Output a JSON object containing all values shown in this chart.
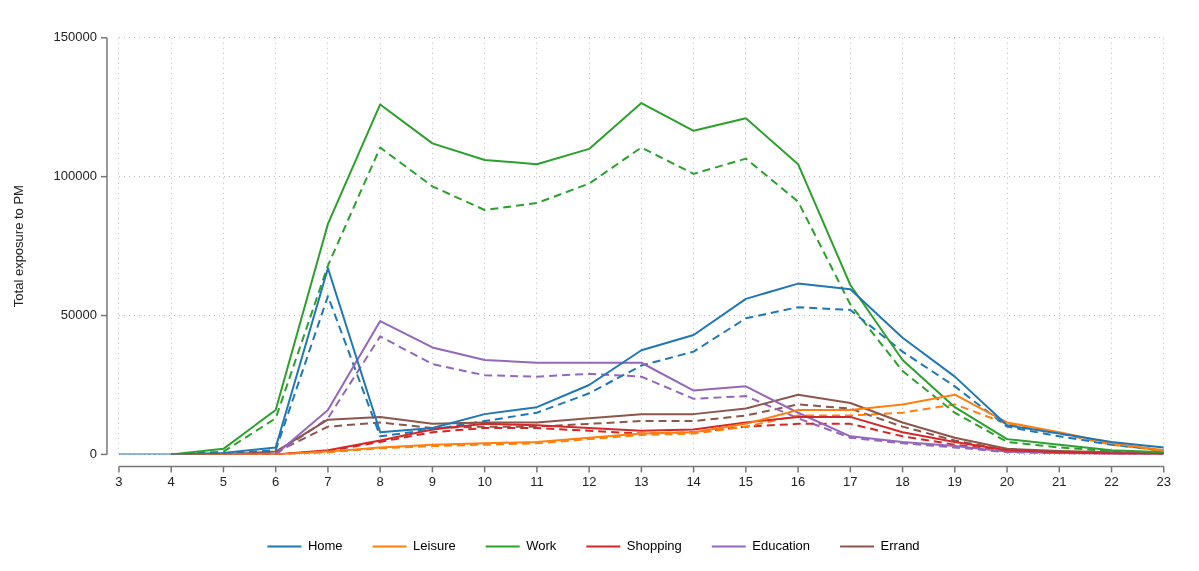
{
  "chart_data": {
    "type": "line",
    "ylabel": "Total exposure to PM",
    "x": [
      3,
      4,
      5,
      6,
      7,
      8,
      9,
      10,
      11,
      12,
      13,
      14,
      15,
      16,
      17,
      18,
      19,
      20,
      21,
      22,
      23
    ],
    "xlim": [
      3,
      23
    ],
    "xticks": [
      3,
      4,
      5,
      6,
      7,
      8,
      9,
      10,
      11,
      12,
      13,
      14,
      15,
      16,
      17,
      18,
      19,
      20,
      21,
      22,
      23
    ],
    "ylim": [
      0,
      150000
    ],
    "yticks": [
      0,
      50000,
      100000,
      150000
    ],
    "grid": true,
    "legend": "bottom",
    "marker": "none",
    "series": [
      {
        "name": "Home",
        "color": "#1f77b4",
        "line_style": "solid",
        "values": [
          0,
          0,
          500,
          2500,
          67000,
          8000,
          9500,
          14500,
          17000,
          25000,
          37500,
          43000,
          56000,
          61500,
          59500,
          42000,
          28000,
          10500,
          7500,
          4500,
          2500
        ]
      },
      {
        "name": "Leisure",
        "color": "#ff7f0e",
        "line_style": "solid",
        "values": [
          null,
          0,
          0,
          0,
          1000,
          2500,
          3500,
          4000,
          4500,
          6000,
          7500,
          8000,
          11000,
          16000,
          16000,
          18000,
          21500,
          11500,
          8000,
          4000,
          1500
        ]
      },
      {
        "name": "Work",
        "color": "#2ca02c",
        "line_style": "solid",
        "values": [
          null,
          0,
          2000,
          16000,
          83000,
          126000,
          112000,
          106000,
          104500,
          110000,
          126500,
          116500,
          121000,
          104500,
          61000,
          34000,
          17000,
          5500,
          3500,
          1500,
          800
        ]
      },
      {
        "name": "Shopping",
        "color": "#d62728",
        "line_style": "solid",
        "values": [
          null,
          0,
          0,
          0,
          1500,
          5000,
          9000,
          11000,
          10500,
          9500,
          8500,
          9000,
          11500,
          13500,
          13500,
          8000,
          4500,
          1500,
          800,
          300,
          200
        ]
      },
      {
        "name": "Education",
        "color": "#9467bd",
        "line_style": "solid",
        "values": [
          null,
          null,
          0,
          0,
          16000,
          48000,
          38500,
          34000,
          33000,
          33000,
          33000,
          23000,
          24500,
          15000,
          6500,
          4500,
          3000,
          1000,
          500,
          300,
          200
        ]
      },
      {
        "name": "Errand",
        "color": "#8c564b",
        "line_style": "solid",
        "values": [
          null,
          0,
          0,
          1000,
          12500,
          13500,
          11000,
          11500,
          11500,
          13000,
          14500,
          14500,
          16500,
          21500,
          18500,
          11500,
          6000,
          2000,
          1200,
          800,
          500
        ]
      },
      {
        "color": "#1f77b4",
        "line_style": "dashed",
        "values": [
          null,
          0,
          300,
          1500,
          57000,
          6500,
          9000,
          12000,
          15000,
          22000,
          32000,
          37000,
          49000,
          53000,
          52000,
          37000,
          24500,
          10000,
          6500,
          3500,
          1500
        ]
      },
      {
        "color": "#ff7f0e",
        "line_style": "dashed",
        "values": [
          null,
          0,
          0,
          0,
          800,
          2200,
          3000,
          3500,
          4000,
          5500,
          7000,
          7500,
          10000,
          14000,
          14000,
          15000,
          18000,
          11000,
          7500,
          3500,
          1200
        ]
      },
      {
        "color": "#2ca02c",
        "line_style": "dashed",
        "values": [
          null,
          0,
          1000,
          13000,
          68000,
          110500,
          96500,
          88000,
          90500,
          97500,
          110500,
          101000,
          106500,
          91000,
          54000,
          30000,
          15000,
          4500,
          2500,
          1200,
          500
        ]
      },
      {
        "color": "#d62728",
        "line_style": "dashed",
        "values": [
          null,
          0,
          0,
          0,
          1200,
          4500,
          8000,
          9500,
          9500,
          8500,
          7500,
          8000,
          10000,
          11000,
          11000,
          6500,
          3500,
          1200,
          600,
          200,
          100
        ]
      },
      {
        "color": "#9467bd",
        "line_style": "dashed",
        "values": [
          null,
          null,
          0,
          0,
          13000,
          42500,
          32500,
          28500,
          28000,
          29000,
          28000,
          20000,
          21000,
          13000,
          6000,
          4000,
          2500,
          800,
          400,
          200,
          100
        ]
      },
      {
        "color": "#8c564b",
        "line_style": "dashed",
        "values": [
          null,
          0,
          0,
          700,
          10000,
          11500,
          9500,
          10000,
          10000,
          11000,
          12000,
          12000,
          14000,
          18000,
          16500,
          10000,
          5000,
          1500,
          1000,
          600,
          300
        ]
      }
    ]
  }
}
